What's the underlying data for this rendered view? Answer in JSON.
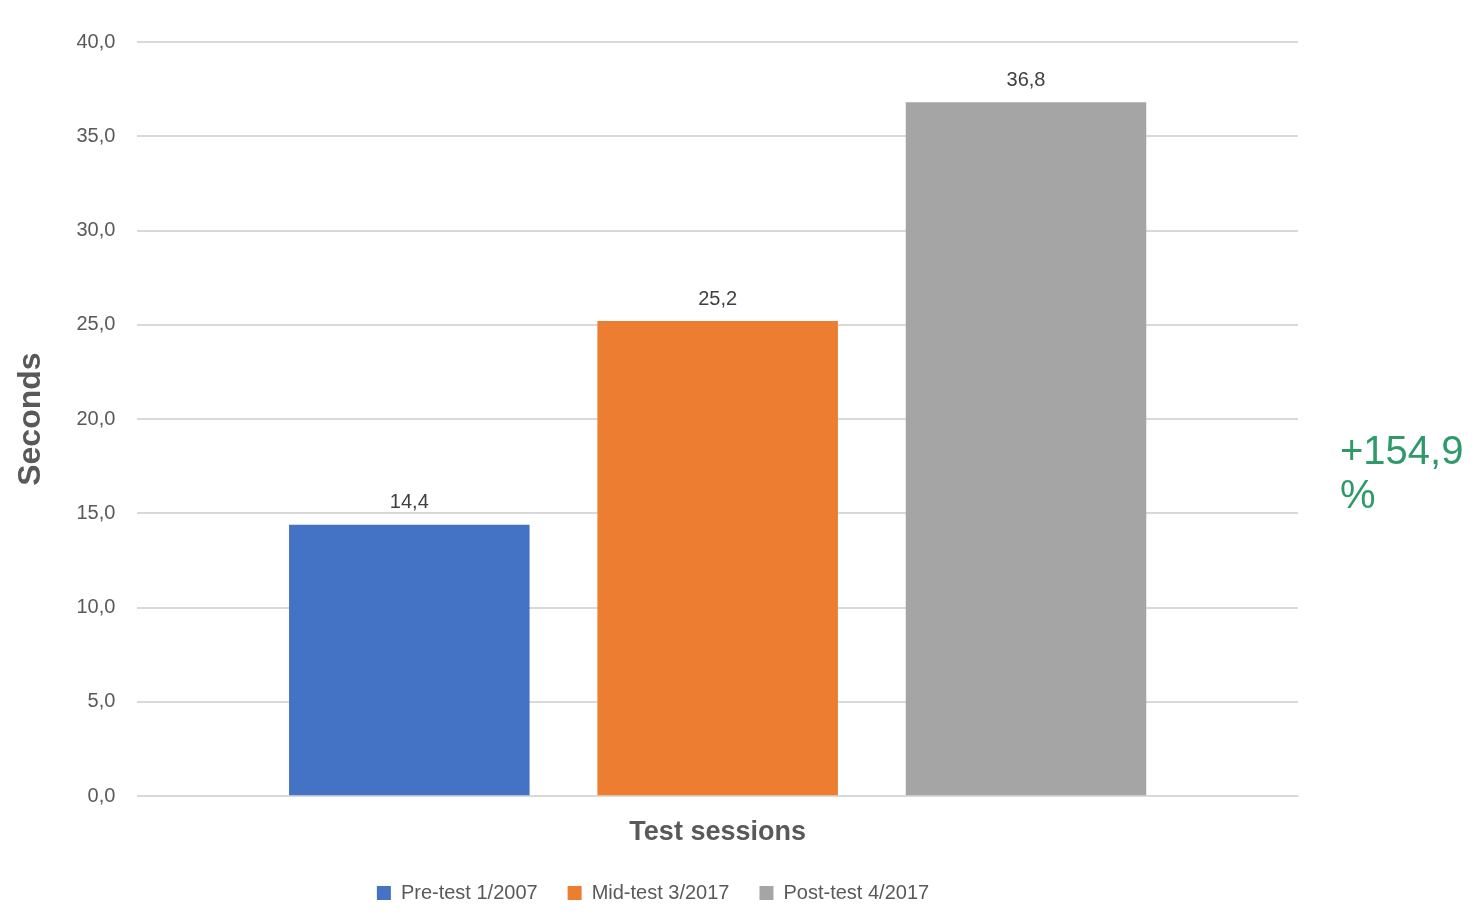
{
  "chart_data": {
    "type": "bar",
    "xlabel": "Test sessions",
    "ylabel": "Seconds",
    "categories": [
      null
    ],
    "series": [
      {
        "name": "Pre-test 1/2007",
        "color": "#4472c4",
        "values": [
          14.4
        ],
        "value_labels": [
          "14,4"
        ]
      },
      {
        "name": "Mid-test 3/2017",
        "color": "#ed7d31",
        "values": [
          25.2
        ],
        "value_labels": [
          "25,2"
        ]
      },
      {
        "name": "Post-test 4/2017",
        "color": "#a5a5a5",
        "values": [
          36.8
        ],
        "value_labels": [
          "36,8"
        ]
      }
    ],
    "ylim": [
      0,
      40
    ],
    "yticks": [
      {
        "value": 0,
        "label": "0,0"
      },
      {
        "value": 5,
        "label": "5,0"
      },
      {
        "value": 10,
        "label": "10,0"
      },
      {
        "value": 15,
        "label": "15,0"
      },
      {
        "value": 20,
        "label": "20,0"
      },
      {
        "value": 25,
        "label": "25,0"
      },
      {
        "value": 30,
        "label": "30,0"
      },
      {
        "value": 35,
        "label": "35,0"
      },
      {
        "value": 40,
        "label": "40,0"
      }
    ],
    "grid": "y",
    "legend": "bottom",
    "annotations": [
      "+154,9 %"
    ]
  }
}
